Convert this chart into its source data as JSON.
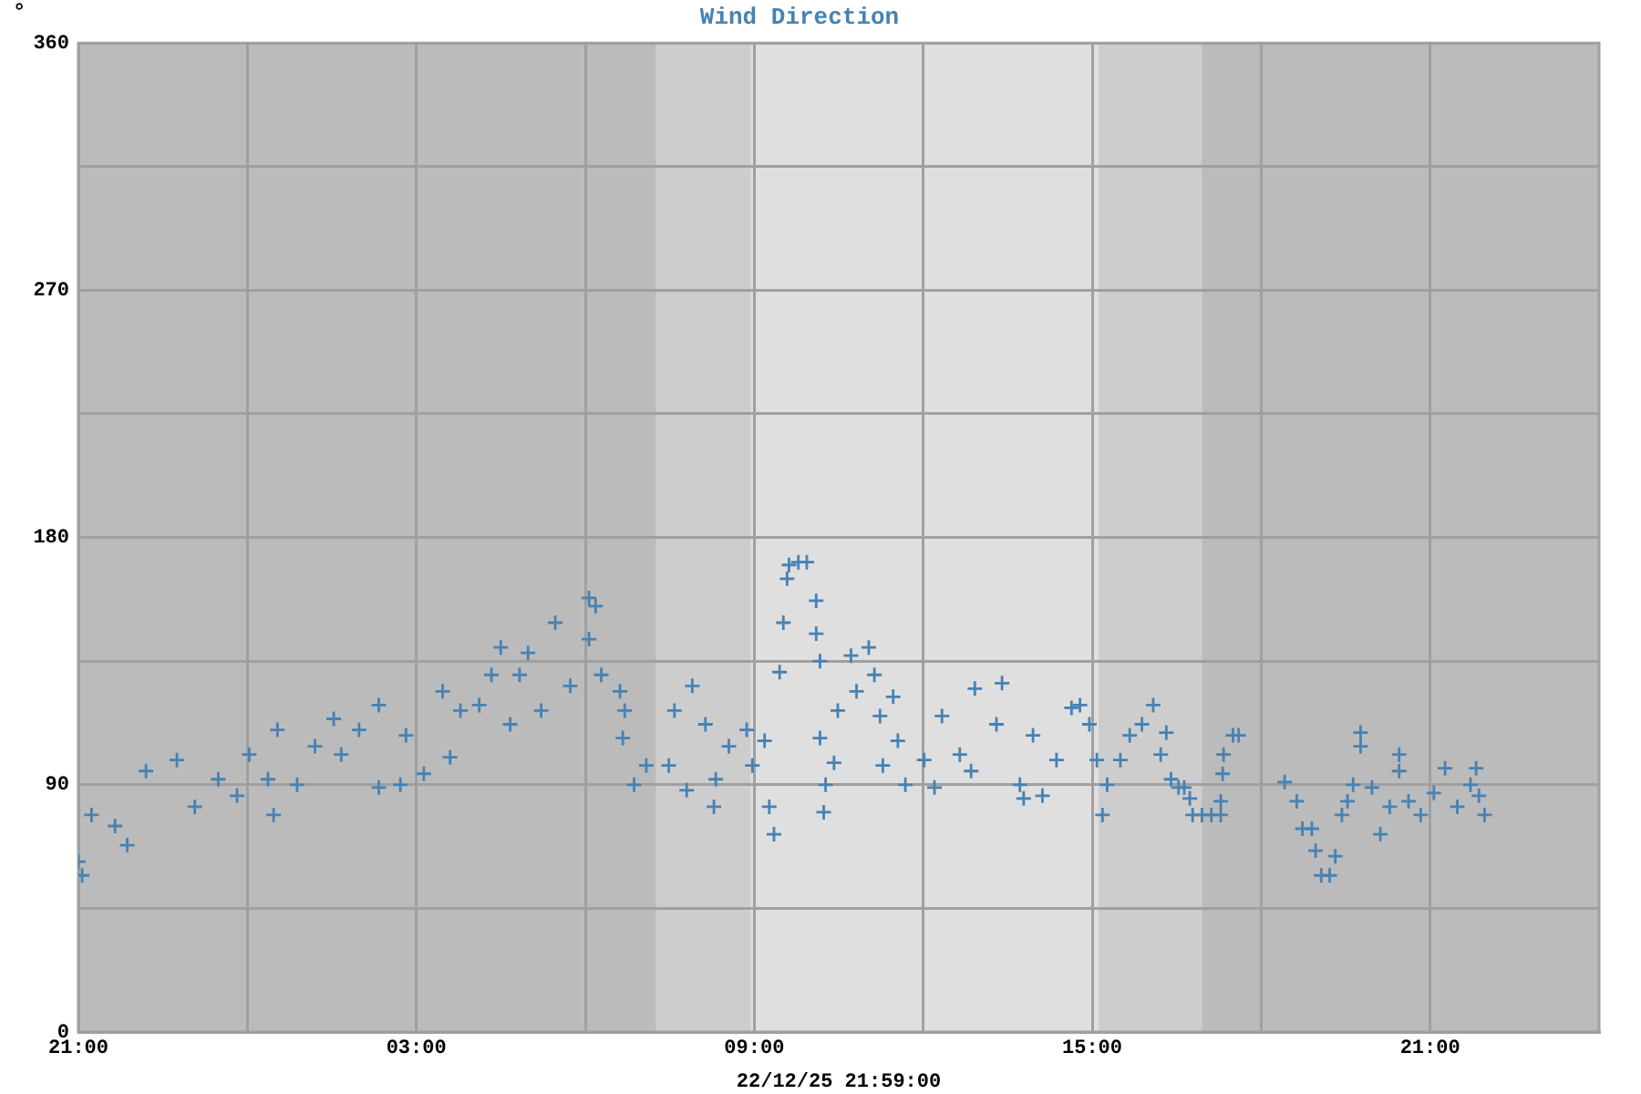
{
  "chart_data": {
    "type": "scatter",
    "title": "Wind Direction",
    "xlabel": "22/12/25 21:59:00",
    "ylabel": "°",
    "x": [
      "--12-21T21:00",
      "--12-21T21:04",
      "--12-21T21:14",
      "--12-21T21:39",
      "--12-21T21:52",
      "--12-21T22:12",
      "--12-21T22:45",
      "--12-21T23:04",
      "--12-21T23:29",
      "--12-21T23:49",
      "--12-22T00:02",
      "--12-22T00:22",
      "--12-22T00:28",
      "--12-22T00:32",
      "--12-22T00:53",
      "--12-22T01:12",
      "--12-22T01:32",
      "--12-22T01:40",
      "--12-22T01:59",
      "--12-22T02:20",
      "--12-22T02:20",
      "--12-22T02:43",
      "--12-22T02:49",
      "--12-22T03:08",
      "--12-22T03:28",
      "--12-22T03:36",
      "--12-22T03:47",
      "--12-22T04:07",
      "--12-22T04:20",
      "--12-22T04:30",
      "--12-22T04:40",
      "--12-22T04:50",
      "--12-22T04:59",
      "--12-22T05:13",
      "--12-22T05:28",
      "--12-22T05:44",
      "--12-22T06:04",
      "--12-22T06:11",
      "--12-22T06:04",
      "--12-22T06:17",
      "--12-22T06:37",
      "--12-22T06:42",
      "--12-22T06:40",
      "--12-22T06:52",
      "--12-22T07:05",
      "--12-22T07:29",
      "--12-22T07:35",
      "--12-22T07:48",
      "--12-22T07:54",
      "--12-22T08:08",
      "--12-22T08:17",
      "--12-22T08:19",
      "--12-22T08:33",
      "--12-22T08:52",
      "--12-22T08:58",
      "--12-22T09:11",
      "--12-22T09:16",
      "--12-22T09:21",
      "--12-22T09:27",
      "--12-22T09:31",
      "--12-22T09:35",
      "--12-22T09:37",
      "--12-22T09:47",
      "--12-22T09:56",
      "--12-22T10:06",
      "--12-22T10:06",
      "--12-22T10:10",
      "--12-22T10:10",
      "--12-22T10:14",
      "--12-22T10:16",
      "--12-22T10:25",
      "--12-22T10:29",
      "--12-22T10:43",
      "--12-22T10:49",
      "--12-22T11:02",
      "--12-22T11:08",
      "--12-22T11:14",
      "--12-22T11:17",
      "--12-22T11:28",
      "--12-22T11:33",
      "--12-22T11:41",
      "--12-22T12:01",
      "--12-22T12:12",
      "--12-22T12:20",
      "--12-22T12:39",
      "--12-22T12:51",
      "--12-22T12:55",
      "--12-22T13:18",
      "--12-22T13:24",
      "--12-22T13:43",
      "--12-22T13:47",
      "--12-22T13:57",
      "--12-22T14:07",
      "--12-22T14:22",
      "--12-22T14:38",
      "--12-22T14:47",
      "--12-22T14:57",
      "--12-22T15:05",
      "--12-22T15:11",
      "--12-22T15:16",
      "--12-22T15:30",
      "--12-22T15:40",
      "--12-22T15:53",
      "--12-22T16:05",
      "--12-22T16:13",
      "--12-22T16:19",
      "--12-22T16:24",
      "--12-22T16:32",
      "--12-22T16:38",
      "--12-22T16:44",
      "--12-22T16:47",
      "--12-22T16:57",
      "--12-22T17:07",
      "--12-22T17:17",
      "--12-22T17:17",
      "--12-22T17:19",
      "--12-22T17:20",
      "--12-22T17:30",
      "--12-22T17:36",
      "--12-22T18:25",
      "--12-22T18:38",
      "--12-22T18:44",
      "--12-22T18:54",
      "--12-22T18:58",
      "--12-22T19:04",
      "--12-22T19:13",
      "--12-22T19:19",
      "--12-22T19:26",
      "--12-22T19:32",
      "--12-22T19:38",
      "--12-22T19:46",
      "--12-22T19:46",
      "--12-22T19:58",
      "--12-22T20:07",
      "--12-22T20:17",
      "--12-22T20:27",
      "--12-22T20:27",
      "--12-22T20:37",
      "--12-22T20:50",
      "--12-22T21:04",
      "--12-22T21:16",
      "--12-22T21:29",
      "--12-22T21:43",
      "--12-22T21:49",
      "--12-22T21:52",
      "--12-22T21:58"
    ],
    "values": [
      62,
      57,
      79,
      75,
      68,
      95,
      99,
      82,
      92,
      86,
      101,
      92,
      79,
      110,
      90,
      104,
      114,
      101,
      110,
      119,
      89,
      90,
      108,
      94,
      124,
      100,
      117,
      119,
      130,
      140,
      112,
      130,
      138,
      117,
      149,
      126,
      158,
      155,
      143,
      130,
      124,
      117,
      107,
      90,
      97,
      97,
      117,
      88,
      126,
      112,
      82,
      92,
      104,
      110,
      97,
      106,
      82,
      72,
      131,
      149,
      165,
      170,
      171,
      171,
      157,
      145,
      135,
      107,
      80,
      90,
      98,
      117,
      137,
      124,
      140,
      130,
      115,
      97,
      122,
      106,
      90,
      99,
      89,
      115,
      101,
      95,
      125,
      112,
      127,
      90,
      85,
      108,
      86,
      99,
      118,
      119,
      112,
      99,
      79,
      90,
      99,
      108,
      112,
      119,
      101,
      109,
      92,
      89,
      89,
      85,
      79,
      79,
      79,
      79,
      84,
      94,
      101,
      108,
      108,
      91,
      84,
      74,
      74,
      66,
      57,
      57,
      64,
      79,
      84,
      90,
      109,
      104,
      89,
      72,
      82,
      101,
      95,
      84,
      79,
      87,
      96,
      82,
      90,
      96,
      86,
      79
    ],
    "color": "#4682b4",
    "marker": "cross",
    "xlim": [
      "--12-21T21:00",
      "--12-23T00:00"
    ],
    "xticks": [
      {
        "value": "--12-21T21:00",
        "label": "21:00"
      },
      {
        "value": "--12-22T00:00",
        "label": null
      },
      {
        "value": "--12-22T03:00",
        "label": "03:00"
      },
      {
        "value": "--12-22T06:00",
        "label": null
      },
      {
        "value": "--12-22T09:00",
        "label": "09:00"
      },
      {
        "value": "--12-22T12:00",
        "label": null
      },
      {
        "value": "--12-22T15:00",
        "label": "15:00"
      },
      {
        "value": "--12-22T18:00",
        "label": null
      },
      {
        "value": "--12-22T21:00",
        "label": "21:00"
      }
    ],
    "ylim": [
      0,
      360
    ],
    "yticks": [
      0,
      {
        "value": 45,
        "label": null
      },
      90,
      {
        "value": 135,
        "label": null
      },
      180,
      {
        "value": 225,
        "label": null
      },
      270,
      {
        "value": 315,
        "label": null
      },
      360
    ],
    "grid": true,
    "bands": [
      {
        "axis": "x",
        "from": "--12-22T07:15",
        "to": "--12-22T08:56",
        "color": "#cdcdcd"
      },
      {
        "axis": "x",
        "from": "--12-22T08:56",
        "to": "--12-22T15:07",
        "color": "#dfdfdf"
      },
      {
        "axis": "x",
        "from": "--12-22T15:07",
        "to": "--12-22T16:57",
        "color": "#cdcdcd"
      }
    ]
  }
}
